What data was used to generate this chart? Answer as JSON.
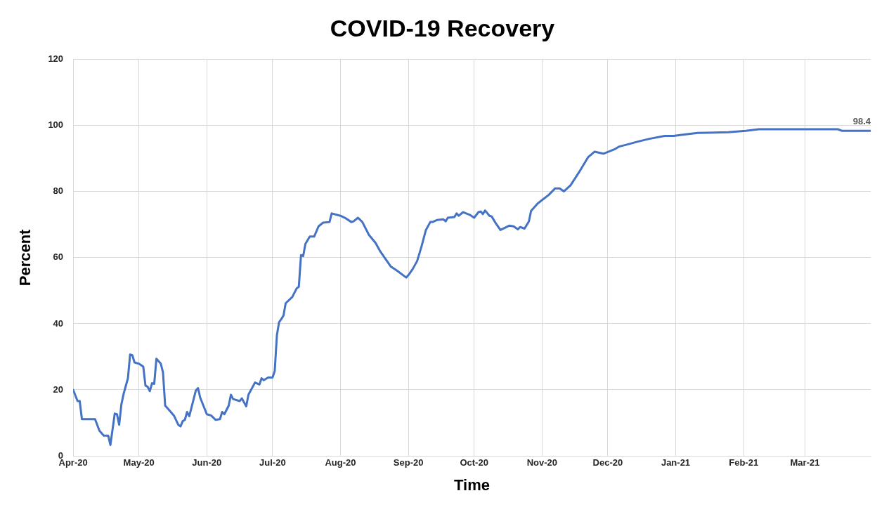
{
  "chart_data": {
    "type": "line",
    "title": "COVID-19 Recovery",
    "xlabel": "Time",
    "ylabel": "Percent",
    "x": [
      "2020-04-01",
      "2020-04-03",
      "2020-04-04",
      "2020-04-05",
      "2020-04-11",
      "2020-04-13",
      "2020-04-15",
      "2020-04-17",
      "2020-04-18",
      "2020-04-20",
      "2020-04-21",
      "2020-04-22",
      "2020-04-23",
      "2020-04-24",
      "2020-04-26",
      "2020-04-27",
      "2020-04-28",
      "2020-04-29",
      "2020-05-01",
      "2020-05-03",
      "2020-05-04",
      "2020-05-05",
      "2020-05-06",
      "2020-05-07",
      "2020-05-08",
      "2020-05-09",
      "2020-05-11",
      "2020-05-12",
      "2020-05-13",
      "2020-05-15",
      "2020-05-17",
      "2020-05-19",
      "2020-05-20",
      "2020-05-21",
      "2020-05-22",
      "2020-05-23",
      "2020-05-24",
      "2020-05-27",
      "2020-05-28",
      "2020-05-29",
      "2020-06-01",
      "2020-06-03",
      "2020-06-05",
      "2020-06-07",
      "2020-06-08",
      "2020-06-09",
      "2020-06-11",
      "2020-06-12",
      "2020-06-13",
      "2020-06-16",
      "2020-06-17",
      "2020-06-19",
      "2020-06-20",
      "2020-06-23",
      "2020-06-25",
      "2020-06-26",
      "2020-06-27",
      "2020-06-29",
      "2020-07-01",
      "2020-07-02",
      "2020-07-03",
      "2020-07-04",
      "2020-07-05",
      "2020-07-06",
      "2020-07-07",
      "2020-07-10",
      "2020-07-12",
      "2020-07-13",
      "2020-07-14",
      "2020-07-15",
      "2020-07-16",
      "2020-07-18",
      "2020-07-20",
      "2020-07-22",
      "2020-07-24",
      "2020-07-27",
      "2020-07-28",
      "2020-08-01",
      "2020-08-03",
      "2020-08-06",
      "2020-08-07",
      "2020-08-09",
      "2020-08-11",
      "2020-08-14",
      "2020-08-17",
      "2020-08-19",
      "2020-08-24",
      "2020-08-27",
      "2020-08-31",
      "2020-09-01",
      "2020-09-03",
      "2020-09-05",
      "2020-09-07",
      "2020-09-09",
      "2020-09-11",
      "2020-09-12",
      "2020-09-14",
      "2020-09-17",
      "2020-09-18",
      "2020-09-19",
      "2020-09-22",
      "2020-09-23",
      "2020-09-24",
      "2020-09-26",
      "2020-09-29",
      "2020-10-01",
      "2020-10-03",
      "2020-10-04",
      "2020-10-05",
      "2020-10-06",
      "2020-10-08",
      "2020-10-09",
      "2020-10-11",
      "2020-10-13",
      "2020-10-17",
      "2020-10-19",
      "2020-10-21",
      "2020-10-22",
      "2020-10-24",
      "2020-10-26",
      "2020-10-27",
      "2020-10-30",
      "2020-11-04",
      "2020-11-07",
      "2020-11-09",
      "2020-11-11",
      "2020-11-14",
      "2020-11-18",
      "2020-11-20",
      "2020-11-22",
      "2020-11-25",
      "2020-11-29",
      "2020-12-04",
      "2020-12-06",
      "2020-12-10",
      "2020-12-15",
      "2020-12-20",
      "2020-12-27",
      "2020-12-31",
      "2021-01-05",
      "2021-01-11",
      "2021-01-25",
      "2021-02-02",
      "2021-02-08",
      "2021-03-16",
      "2021-03-18",
      "2021-03-31"
    ],
    "series": [
      {
        "color": "#4472c4",
        "values": [
          20,
          16.6,
          16.6,
          11.1,
          11.1,
          7.6,
          6.1,
          6.1,
          3.3,
          12.8,
          12.6,
          9.4,
          15.5,
          18.7,
          23.5,
          30.7,
          30.5,
          28.3,
          27.9,
          27,
          21.3,
          20.9,
          19.6,
          22,
          21.8,
          29.4,
          27.9,
          25.3,
          15.2,
          13.7,
          12.2,
          9.4,
          8.9,
          10.5,
          10.9,
          13.3,
          12,
          19.8,
          20.5,
          17.6,
          12.6,
          12.2,
          10.9,
          11.1,
          13.3,
          12.6,
          15.2,
          18.5,
          17.2,
          16.6,
          17.4,
          15,
          18.5,
          22.2,
          21.6,
          23.5,
          22.9,
          23.7,
          23.7,
          25.7,
          36.6,
          40.5,
          41.4,
          42.5,
          46.2,
          48.1,
          50.7,
          51.2,
          60.8,
          60.5,
          64.2,
          66.4,
          66.4,
          69.5,
          70.6,
          70.8,
          73.4,
          72.7,
          72.1,
          70.8,
          71,
          72.1,
          70.8,
          66.9,
          64.5,
          62.1,
          57.3,
          56,
          54,
          54.7,
          56.6,
          59,
          63.4,
          68.4,
          70.8,
          70.8,
          71.4,
          71.6,
          71,
          72.1,
          72.3,
          73.4,
          72.7,
          73.8,
          73,
          72.1,
          73.8,
          74,
          73.2,
          74.3,
          72.7,
          72.5,
          70.3,
          68.4,
          69.7,
          69.5,
          68.6,
          69.3,
          68.8,
          71,
          74.2,
          76.4,
          79,
          81,
          81,
          80.1,
          81.9,
          86,
          88.2,
          90.4,
          92.1,
          91.5,
          92.8,
          93.6,
          94.3,
          95.2,
          96,
          96.9,
          96.9,
          97.3,
          97.8,
          98,
          98.4,
          98.9,
          98.9,
          98.4,
          98.4
        ]
      }
    ],
    "xlim": [
      "2020-04-01",
      "2021-03-31"
    ],
    "xticks": [
      {
        "value": "2020-04-01",
        "label": "Apr-20"
      },
      {
        "value": "2020-05-01",
        "label": "May-20"
      },
      {
        "value": "2020-06-01",
        "label": "Jun-20"
      },
      {
        "value": "2020-07-01",
        "label": "Jul-20"
      },
      {
        "value": "2020-08-01",
        "label": "Aug-20"
      },
      {
        "value": "2020-09-01",
        "label": "Sep-20"
      },
      {
        "value": "2020-10-01",
        "label": "Oct-20"
      },
      {
        "value": "2020-11-01",
        "label": "Nov-20"
      },
      {
        "value": "2020-12-01",
        "label": "Dec-20"
      },
      {
        "value": "2021-01-01",
        "label": "Jan-21"
      },
      {
        "value": "2021-02-01",
        "label": "Feb-21"
      },
      {
        "value": "2021-03-01",
        "label": "Mar-21"
      }
    ],
    "ylim": [
      0,
      120
    ],
    "yticks": [
      0,
      20,
      40,
      60,
      80,
      100,
      120
    ],
    "grid": true,
    "legend": false,
    "marker": "none",
    "line_style": "solid",
    "annotations": [
      {
        "text": "98.4",
        "x": "2021-03-31",
        "y": 98.4
      }
    ]
  }
}
